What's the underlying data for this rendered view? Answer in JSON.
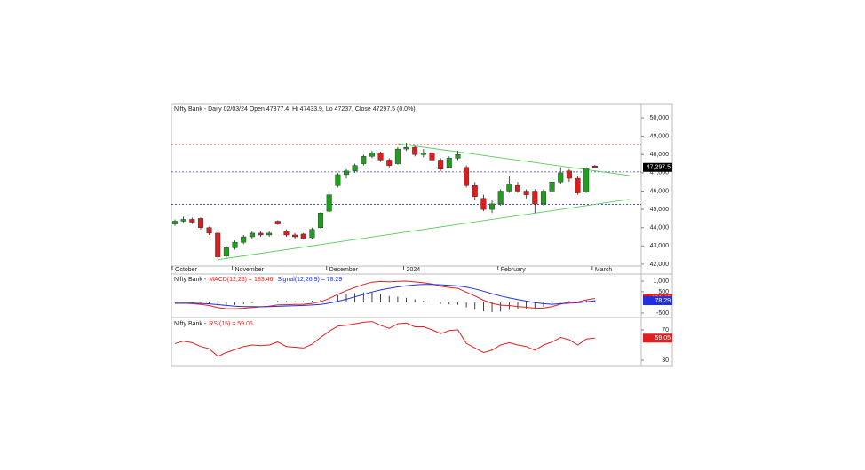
{
  "chart_data": [
    {
      "type": "candlestick",
      "title": "Nifty Bank - Daily 02/03/24 Open 47377.4, Hi 47433.9, Lo 47237, Close 47297.5 (0.0%)",
      "categories": [
        "October",
        null,
        null,
        null,
        null,
        null,
        null,
        "November",
        null,
        null,
        null,
        null,
        null,
        null,
        null,
        null,
        null,
        null,
        "December",
        null,
        null,
        null,
        null,
        null,
        null,
        null,
        null,
        "2024",
        null,
        null,
        null,
        null,
        null,
        null,
        null,
        null,
        null,
        null,
        "February",
        null,
        null,
        null,
        null,
        null,
        null,
        null,
        null,
        null,
        null,
        "March"
      ],
      "open": [
        44200,
        44350,
        44450,
        44500,
        44000,
        43700,
        42450,
        42900,
        43200,
        43500,
        43700,
        43600,
        44350,
        43800,
        43600,
        43650,
        43450,
        44000,
        44900,
        46300,
        46900,
        47100,
        47500,
        47900,
        48100,
        47700,
        47500,
        48300,
        48400,
        48000,
        48100,
        47700,
        47300,
        47800,
        47300,
        46300,
        45600,
        45000,
        45300,
        46000,
        46300,
        46000,
        46000,
        45300,
        46000,
        46500,
        47100,
        46700,
        45950,
        47377.4
      ],
      "high": [
        44450,
        44600,
        44550,
        44550,
        44050,
        43750,
        43000,
        43300,
        43600,
        43800,
        43800,
        43800,
        44400,
        43900,
        43700,
        43700,
        44000,
        44850,
        46000,
        47000,
        47200,
        47500,
        48000,
        48200,
        48150,
        47800,
        48400,
        48650,
        48450,
        48300,
        48200,
        47800,
        47900,
        48200,
        47400,
        46500,
        45800,
        45500,
        46100,
        46800,
        46500,
        46100,
        46100,
        46100,
        46600,
        47300,
        47200,
        46800,
        47300,
        47433.9
      ],
      "low": [
        44100,
        44250,
        44200,
        43900,
        43600,
        42300,
        42350,
        42800,
        43100,
        43400,
        43500,
        43500,
        44150,
        43500,
        43400,
        43350,
        43400,
        43950,
        44850,
        46200,
        46700,
        47000,
        47400,
        47800,
        47600,
        47300,
        47450,
        48200,
        47900,
        47850,
        47600,
        47100,
        47250,
        47700,
        46200,
        45500,
        44900,
        44800,
        45200,
        45900,
        45900,
        45600,
        44800,
        45200,
        45900,
        46400,
        46500,
        45800,
        45900,
        47237
      ],
      "close": [
        44350,
        44450,
        44300,
        44000,
        43700,
        42400,
        42900,
        43200,
        43500,
        43700,
        43600,
        43700,
        44200,
        43600,
        43500,
        43400,
        43900,
        44800,
        45800,
        46900,
        47100,
        47400,
        47900,
        48100,
        47700,
        47400,
        48300,
        48400,
        48000,
        48100,
        47700,
        47200,
        47800,
        48000,
        46300,
        45700,
        45000,
        45300,
        46000,
        46400,
        46000,
        45800,
        45300,
        46000,
        46500,
        47000,
        46700,
        45900,
        47250,
        47297.5
      ],
      "up_color": "#1f9e1f",
      "down_color": "#d62020",
      "ylim": [
        41900,
        50730
      ],
      "yticks": [
        {
          "value": 42000,
          "label": "42,000"
        },
        {
          "value": 43000,
          "label": "43,000"
        },
        {
          "value": 44000,
          "label": "44,000"
        },
        {
          "value": 45000,
          "label": "45,000"
        },
        {
          "value": 46000,
          "label": "46,000"
        },
        {
          "value": 47000,
          "label": "47,000"
        },
        {
          "value": 48000,
          "label": "48,000"
        },
        {
          "value": 49000,
          "label": "49,000"
        },
        {
          "value": 50000,
          "label": "50,000"
        }
      ],
      "ref_lines": [
        {
          "value": 48550,
          "color": "#e03030"
        },
        {
          "value": 47050,
          "color": "#3030d0"
        },
        {
          "value": 45270,
          "color": "#3030d0"
        }
      ],
      "trendlines": [
        {
          "x": [
            5,
            53
          ],
          "y": [
            42250,
            45550
          ]
        },
        {
          "x": [
            26,
            53
          ],
          "y": [
            48600,
            46850
          ]
        }
      ],
      "trend_color": "#55cc55",
      "last_price": {
        "value": 47297.5,
        "label": "47,297.5"
      }
    },
    {
      "type": "macd",
      "title": "Nifty Bank -",
      "separator": ",",
      "series": [
        {
          "name": "MACD(12,26) = 183.46",
          "color": "#e02020",
          "values": [
            -50,
            -40,
            -60,
            -100,
            -150,
            -250,
            -300,
            -300,
            -280,
            -240,
            -210,
            -180,
            -120,
            -110,
            -100,
            -90,
            -50,
            30,
            180,
            380,
            550,
            700,
            840,
            950,
            980,
            960,
            990,
            1000,
            960,
            920,
            860,
            760,
            700,
            660,
            480,
            300,
            100,
            -50,
            -130,
            -150,
            -200,
            -230,
            -280,
            -270,
            -200,
            -80,
            20,
            20,
            120,
            183.46
          ]
        },
        {
          "name": "Signal(12,26,9) = 78.29",
          "color": "#2030e0",
          "values": [
            -30,
            -32,
            -37,
            -50,
            -70,
            -106,
            -145,
            -176,
            -197,
            -205,
            -206,
            -201,
            -185,
            -170,
            -156,
            -143,
            -124,
            -93,
            -38,
            46,
            147,
            258,
            374,
            489,
            587,
            661,
            727,
            782,
            817,
            838,
            842,
            826,
            801,
            772,
            714,
            631,
            525,
            410,
            302,
            212,
            130,
            58,
            -10,
            -62,
            -90,
            -60,
            -40,
            -20,
            30,
            78.29
          ]
        }
      ],
      "histogram": {
        "color": "#111111",
        "values": [
          -20,
          -8,
          -23,
          -50,
          -80,
          -144,
          -155,
          -124,
          -83,
          -35,
          -4,
          21,
          65,
          60,
          56,
          53,
          74,
          123,
          218,
          334,
          403,
          442,
          466,
          461,
          393,
          299,
          263,
          218,
          143,
          82,
          18,
          -66,
          -101,
          -112,
          -234,
          -331,
          -425,
          -460,
          -432,
          -362,
          -330,
          -288,
          -270,
          -208,
          -110,
          -20,
          60,
          40,
          90,
          105.17
        ]
      },
      "ylim": [
        -670,
        1290
      ],
      "yticks": [
        {
          "value": 1000,
          "label": "1,000"
        },
        500,
        -500
      ]
    },
    {
      "type": "line",
      "title": "Nifty Bank -",
      "series": [
        {
          "name": "RSI(15) = 59.05",
          "color": "#e02020",
          "values": [
            52,
            55,
            53,
            48,
            45,
            35,
            40,
            44,
            48,
            50,
            49,
            50,
            54,
            48,
            47,
            46,
            51,
            60,
            68,
            75,
            76,
            78,
            80,
            81,
            76,
            72,
            78,
            79,
            74,
            74,
            70,
            65,
            69,
            70,
            52,
            46,
            40,
            43,
            50,
            53,
            50,
            48,
            43,
            50,
            54,
            60,
            57,
            50,
            58,
            59.05
          ]
        }
      ],
      "ylim": [
        21.8,
        84
      ],
      "yticks": [
        70,
        30
      ]
    }
  ]
}
